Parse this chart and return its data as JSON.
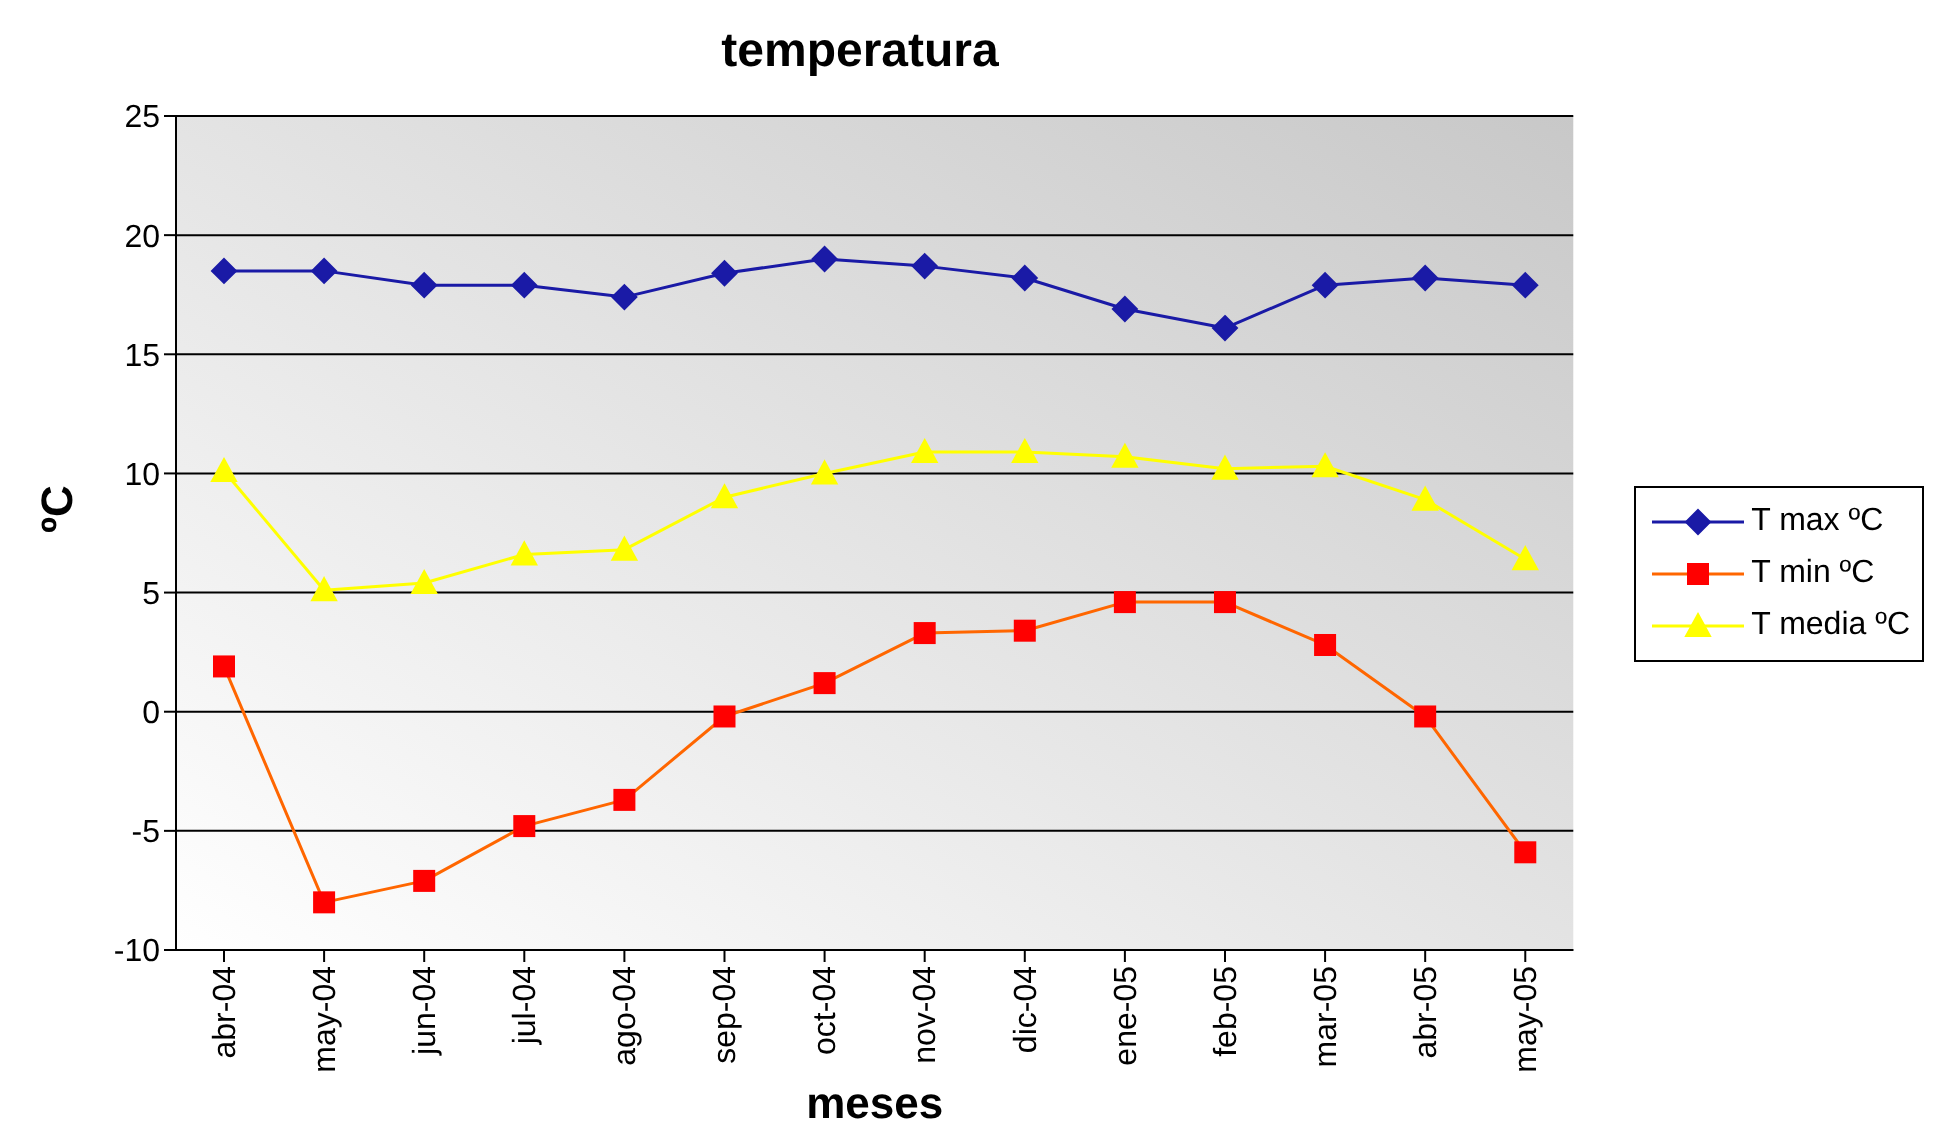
{
  "chart_data": {
    "type": "line",
    "title": "temperatura",
    "xlabel": "meses",
    "ylabel": "ºC",
    "categories": [
      "abr-04",
      "may-04",
      "jun-04",
      "jul-04",
      "ago-04",
      "sep-04",
      "oct-04",
      "nov-04",
      "dic-04",
      "ene-05",
      "feb-05",
      "mar-05",
      "abr-05",
      "may-05"
    ],
    "series": [
      {
        "name": "T max ºC",
        "color": "#1a1aa6",
        "marker": "diamond",
        "values": [
          18.5,
          18.5,
          17.9,
          17.9,
          17.4,
          18.4,
          19.0,
          18.7,
          18.2,
          16.9,
          16.1,
          17.9,
          18.2,
          17.9
        ]
      },
      {
        "name": "T min ºC",
        "color": "#ff6600",
        "marker": "square",
        "values": [
          1.9,
          -8.0,
          -7.1,
          -4.8,
          -3.7,
          -0.2,
          1.2,
          3.3,
          3.4,
          4.6,
          4.6,
          2.8,
          -0.2,
          -5.9
        ]
      },
      {
        "name": "T media ºC",
        "color": "#ffff00",
        "marker": "triangle",
        "values": [
          10.1,
          5.1,
          5.4,
          6.6,
          6.8,
          9.0,
          10.0,
          10.9,
          10.9,
          10.7,
          10.2,
          10.3,
          8.9,
          6.4
        ]
      }
    ],
    "ylim": [
      -10,
      25
    ],
    "yticks": [
      -10,
      -5,
      0,
      5,
      10,
      15,
      20,
      25
    ],
    "grid": "y",
    "legend": "right"
  }
}
